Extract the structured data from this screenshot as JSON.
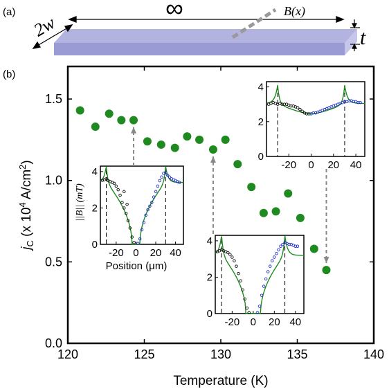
{
  "panel_a": {
    "label": "(a)",
    "width_label": "2w",
    "length_label": "∞",
    "field_label": "B(x)",
    "thickness_label": "t"
  },
  "panel_b": {
    "label": "(b)"
  },
  "colors": {
    "main_marker": "#1f8a1f",
    "model_line": "#1f8a1f",
    "left_data": "#111111",
    "right_data": "#2233cc",
    "arrow": "#888888",
    "strip_top": "#b3b3e0",
    "strip_front": "#9a9ad4",
    "strip_side": "#c6c6ea"
  },
  "chart_data": [
    {
      "type": "scatter",
      "xlabel": "Temperature (K)",
      "ylabel_parts": [
        "j",
        "C",
        " (x 10",
        "4",
        " A/cm",
        "2",
        ")"
      ],
      "xlim": [
        120,
        140
      ],
      "ylim": [
        0,
        1.7
      ],
      "xticks": [
        120,
        125,
        130,
        135,
        140
      ],
      "xtick_labels": [
        "120",
        "125",
        "130",
        "135",
        "140"
      ],
      "yticks": [
        0.0,
        0.5,
        1.0,
        1.5
      ],
      "ytick_labels": [
        "0.0",
        "0.5",
        "1.0",
        "1.5"
      ],
      "grid": false,
      "points": [
        {
          "x": 120.8,
          "y": 1.43
        },
        {
          "x": 121.8,
          "y": 1.33
        },
        {
          "x": 122.7,
          "y": 1.41
        },
        {
          "x": 123.5,
          "y": 1.37
        },
        {
          "x": 124.3,
          "y": 1.37
        },
        {
          "x": 125.2,
          "y": 1.24
        },
        {
          "x": 126.1,
          "y": 1.22
        },
        {
          "x": 127.0,
          "y": 1.2
        },
        {
          "x": 127.8,
          "y": 1.27
        },
        {
          "x": 128.6,
          "y": 1.25
        },
        {
          "x": 129.5,
          "y": 1.19
        },
        {
          "x": 130.3,
          "y": 1.25
        },
        {
          "x": 131.1,
          "y": 1.1
        },
        {
          "x": 132.0,
          "y": 0.96
        },
        {
          "x": 132.8,
          "y": 0.8
        },
        {
          "x": 133.6,
          "y": 0.81
        },
        {
          "x": 134.4,
          "y": 0.92
        },
        {
          "x": 135.2,
          "y": 0.77
        },
        {
          "x": 136.1,
          "y": 0.58
        },
        {
          "x": 136.9,
          "y": 0.45
        }
      ]
    },
    {
      "type": "scatter",
      "inset": "left",
      "xlabel": "Position (μm)",
      "ylabel": "||B|| (mT)",
      "xlim": [
        -36,
        48
      ],
      "ylim": [
        0,
        4.3
      ],
      "xticks": [
        -20,
        0,
        20,
        40
      ],
      "xtick_labels": [
        "-20",
        "0",
        "20",
        "40"
      ],
      "yticks": [
        0,
        2,
        4
      ],
      "ytick_labels": [
        "0",
        "2",
        "4"
      ],
      "edges": [
        -30,
        30
      ],
      "model": {
        "plateau": 3.4,
        "core": 4,
        "peak": 4.3
      },
      "series": [
        {
          "points": [
            [
              -34,
              3.52
            ],
            [
              -32,
              3.55
            ],
            [
              -30,
              3.6
            ],
            [
              -28,
              3.5
            ],
            [
              -26,
              3.45
            ],
            [
              -24,
              3.4
            ],
            [
              -22,
              3.35
            ],
            [
              -20,
              3.2
            ],
            [
              -18,
              3.0
            ],
            [
              -16,
              2.7
            ],
            [
              -14,
              2.3
            ],
            [
              -12,
              2.0
            ],
            [
              -10,
              1.7
            ],
            [
              -8,
              1.3
            ],
            [
              -6,
              0.9
            ],
            [
              -4,
              0.4
            ],
            [
              -2,
              0.1
            ],
            [
              -12,
              2.9
            ],
            [
              -9,
              2.2
            ]
          ]
        },
        {
          "points": [
            [
              2,
              0.05
            ],
            [
              4,
              0.3
            ],
            [
              6,
              0.8
            ],
            [
              8,
              1.2
            ],
            [
              10,
              1.6
            ],
            [
              12,
              1.9
            ],
            [
              14,
              2.1
            ],
            [
              16,
              2.3
            ],
            [
              18,
              2.6
            ],
            [
              20,
              2.9
            ],
            [
              22,
              3.2
            ],
            [
              24,
              3.5
            ],
            [
              26,
              3.7
            ],
            [
              28,
              3.9
            ],
            [
              30,
              3.95
            ],
            [
              32,
              3.8
            ],
            [
              34,
              3.7
            ],
            [
              36,
              3.6
            ],
            [
              38,
              3.55
            ],
            [
              40,
              3.5
            ],
            [
              42,
              3.45
            ],
            [
              44,
              3.4
            ]
          ]
        }
      ]
    },
    {
      "type": "scatter",
      "inset": "middle",
      "xlim": [
        -36,
        48
      ],
      "ylim": [
        0,
        4.3
      ],
      "xticks": [
        -20,
        0,
        20,
        40
      ],
      "xtick_labels": [
        "-20",
        "0",
        "20",
        "40"
      ],
      "yticks": [
        0,
        2,
        4
      ],
      "ytick_labels": [
        "0",
        "2",
        "4"
      ],
      "edges": [
        -30,
        30
      ],
      "model": {
        "plateau": 3.2,
        "core": 7,
        "peak": 4.3
      },
      "series": [
        {
          "points": [
            [
              -34,
              3.4
            ],
            [
              -32,
              3.45
            ],
            [
              -30,
              3.5
            ],
            [
              -28,
              3.45
            ],
            [
              -26,
              3.4
            ],
            [
              -24,
              3.35
            ],
            [
              -22,
              3.25
            ],
            [
              -20,
              3.1
            ],
            [
              -18,
              2.9
            ],
            [
              -16,
              2.6
            ],
            [
              -14,
              2.2
            ],
            [
              -12,
              1.8
            ],
            [
              -10,
              1.3
            ],
            [
              -8,
              0.8
            ],
            [
              -6,
              0.3
            ],
            [
              -4,
              0.05
            ]
          ]
        },
        {
          "points": [
            [
              4,
              0.05
            ],
            [
              6,
              0.4
            ],
            [
              8,
              1.0
            ],
            [
              10,
              1.5
            ],
            [
              12,
              1.9
            ],
            [
              14,
              2.3
            ],
            [
              16,
              2.6
            ],
            [
              18,
              2.9
            ],
            [
              20,
              3.1
            ],
            [
              22,
              3.3
            ],
            [
              24,
              3.5
            ],
            [
              26,
              3.7
            ],
            [
              28,
              3.8
            ],
            [
              30,
              3.9
            ],
            [
              32,
              3.85
            ],
            [
              34,
              3.8
            ],
            [
              36,
              3.8
            ],
            [
              38,
              3.75
            ],
            [
              40,
              3.7
            ],
            [
              42,
              3.7
            ]
          ]
        }
      ]
    },
    {
      "type": "scatter",
      "inset": "right",
      "xlim": [
        -40,
        48
      ],
      "ylim": [
        0,
        4.3
      ],
      "xticks": [
        -20,
        0,
        20,
        40
      ],
      "xtick_labels": [
        "-20",
        "0",
        "20",
        "40"
      ],
      "yticks": [
        0,
        2,
        4
      ],
      "ytick_labels": [
        "0",
        "2",
        "4"
      ],
      "edges": [
        -30,
        30
      ],
      "model": {
        "plateau": 3.05,
        "core": 0,
        "peak": 4.1
      },
      "series": [
        {
          "points": [
            [
              -38,
              3.0
            ],
            [
              -36,
              3.05
            ],
            [
              -34,
              3.1
            ],
            [
              -32,
              3.05
            ],
            [
              -30,
              3.0
            ],
            [
              -28,
              3.05
            ],
            [
              -26,
              3.0
            ],
            [
              -24,
              3.0
            ],
            [
              -22,
              3.0
            ],
            [
              -20,
              2.95
            ],
            [
              -18,
              2.9
            ],
            [
              -16,
              2.9
            ],
            [
              -14,
              2.85
            ],
            [
              -12,
              2.8
            ],
            [
              -10,
              2.7
            ],
            [
              -8,
              2.6
            ],
            [
              -6,
              2.5
            ],
            [
              -4,
              2.45
            ],
            [
              -2,
              2.45
            ]
          ]
        },
        {
          "points": [
            [
              0,
              2.45
            ],
            [
              2,
              2.5
            ],
            [
              4,
              2.5
            ],
            [
              6,
              2.55
            ],
            [
              8,
              2.6
            ],
            [
              10,
              2.65
            ],
            [
              12,
              2.7
            ],
            [
              14,
              2.75
            ],
            [
              16,
              2.8
            ],
            [
              18,
              2.85
            ],
            [
              20,
              2.9
            ],
            [
              22,
              2.95
            ],
            [
              24,
              3.0
            ],
            [
              26,
              3.05
            ],
            [
              28,
              3.1
            ],
            [
              30,
              3.15
            ],
            [
              32,
              3.15
            ],
            [
              34,
              3.2
            ],
            [
              36,
              3.2
            ],
            [
              38,
              3.15
            ],
            [
              40,
              3.15
            ],
            [
              42,
              3.1
            ],
            [
              44,
              3.1
            ]
          ]
        }
      ]
    }
  ]
}
